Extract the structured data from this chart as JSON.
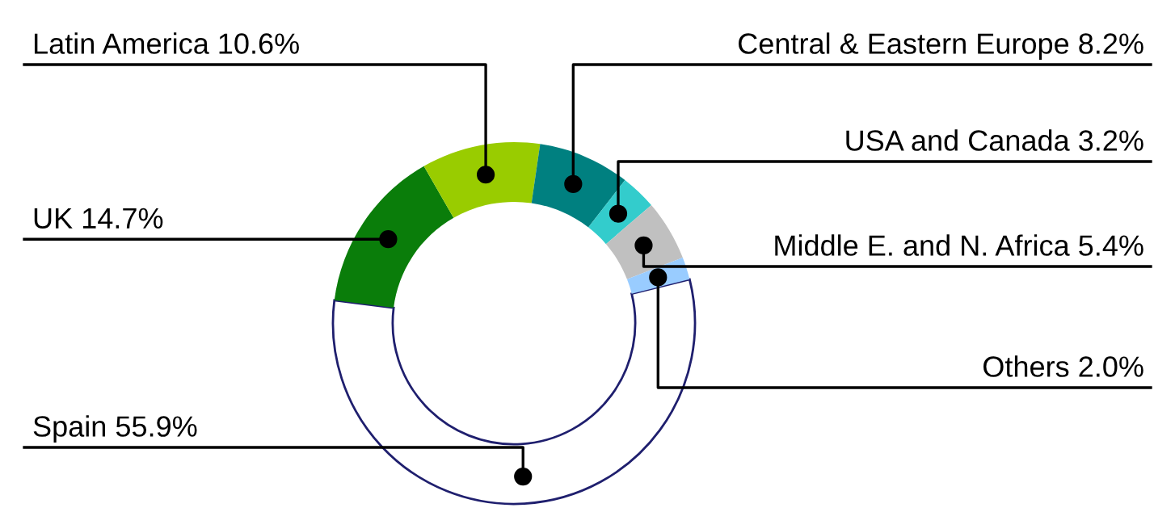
{
  "chart_data": {
    "type": "donut",
    "categories": [
      "Spain",
      "UK",
      "Latin America",
      "Central & Eastern Europe",
      "USA and Canada",
      "Middle E. and N. Africa",
      "Others"
    ],
    "values": [
      55.9,
      14.7,
      10.6,
      8.2,
      3.2,
      5.4,
      2.0
    ],
    "value_labels": [
      "55.9%",
      "14.7%",
      "10.6%",
      "8.2%",
      "3.2%",
      "5.4%",
      "2.0%"
    ],
    "colors": [
      "#ffffff",
      "#0a7d0a",
      "#99cc00",
      "#008080",
      "#33cccc",
      "#c0c0c0",
      "#99ccff"
    ],
    "legend": false
  }
}
